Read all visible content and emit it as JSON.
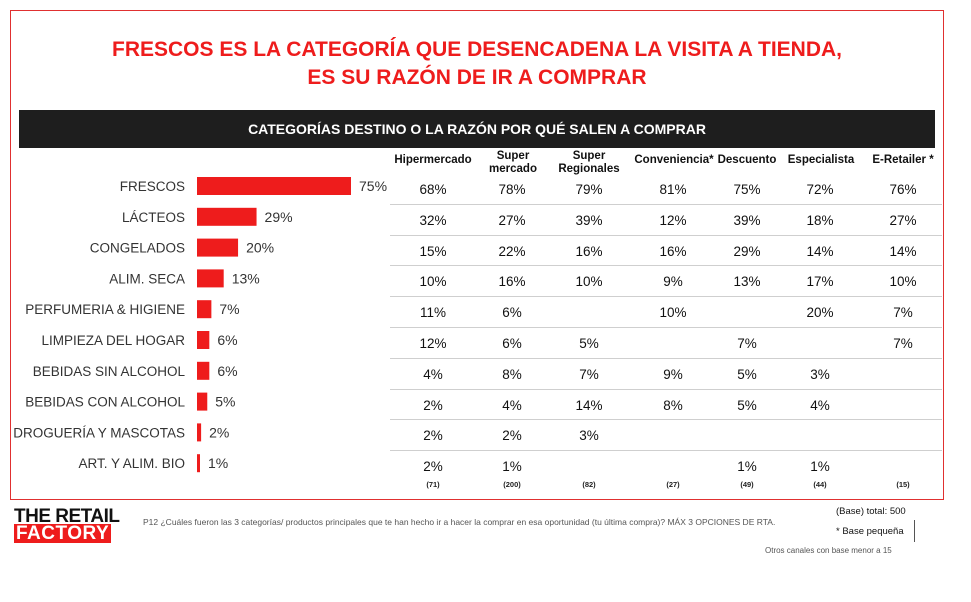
{
  "header": {
    "title_line1": "FRESCOS ES LA CATEGORÍA QUE DESENCADENA LA VISITA A TIENDA,",
    "title_line2": "ES SU RAZÓN DE IR A COMPRAR"
  },
  "band_label": "CATEGORÍAS DESTINO O LA RAZÓN POR QUÉ SALEN A COMPRAR",
  "colors": {
    "accent": "#ee1c1c",
    "band": "#1e1e1e"
  },
  "chart_data": {
    "type": "bar",
    "orientation": "horizontal",
    "categories": [
      "FRESCOS",
      "LÁCTEOS",
      "CONGELADOS",
      "ALIM. SECA",
      "PERFUMERIA & HIGIENE",
      "LIMPIEZA DEL HOGAR",
      "BEBIDAS SIN  ALCOHOL",
      "BEBIDAS CON ALCOHOL",
      "DROGUERÍA Y MASCOTAS",
      "ART. Y ALIM. BIO"
    ],
    "values": [
      75,
      29,
      20,
      13,
      7,
      6,
      6,
      5,
      2,
      1
    ],
    "value_labels": [
      "75%",
      "29%",
      "20%",
      "13%",
      "7%",
      "6%",
      "6%",
      "5%",
      "2%",
      "1%"
    ],
    "xlim": [
      0,
      75
    ]
  },
  "table": {
    "columns": [
      "Hipermercado",
      "Super mercado",
      "Super Regionales",
      "Conveniencia*",
      "Descuento",
      "Especialista",
      "E-Retailer *"
    ],
    "rows": [
      [
        "68%",
        "78%",
        "79%",
        "81%",
        "75%",
        "72%",
        "76%"
      ],
      [
        "32%",
        "27%",
        "39%",
        "12%",
        "39%",
        "18%",
        "27%"
      ],
      [
        "15%",
        "22%",
        "16%",
        "16%",
        "29%",
        "14%",
        "14%"
      ],
      [
        "10%",
        "16%",
        "10%",
        "9%",
        "13%",
        "17%",
        "10%"
      ],
      [
        "11%",
        "6%",
        "",
        "10%",
        "",
        "20%",
        "7%"
      ],
      [
        "12%",
        "6%",
        "5%",
        "",
        "7%",
        "",
        "7%"
      ],
      [
        "4%",
        "8%",
        "7%",
        "9%",
        "5%",
        "3%",
        ""
      ],
      [
        "2%",
        "4%",
        "14%",
        "8%",
        "5%",
        "4%",
        ""
      ],
      [
        "2%",
        "2%",
        "3%",
        "",
        "",
        "",
        ""
      ],
      [
        "2%",
        "1%",
        "",
        "",
        "1%",
        "1%",
        ""
      ]
    ],
    "bases": [
      "(71)",
      "(200)",
      "(82)",
      "(27)",
      "(49)",
      "(44)",
      "(15)"
    ]
  },
  "footer": {
    "logo_line1": "THE RETAIL",
    "logo_line2": "FACTORY",
    "question": "P12 ¿Cuáles fueron las 3 categorías/ productos principales que te han hecho ir a hacer la comprar en esa oportunidad (tu última compra)? MÁX 3 OPCIONES DE RTA.",
    "base_total": "(Base) total: 500",
    "small_base": "* Base pequeña",
    "other_channels": "Otros canales con base menor a 15"
  }
}
